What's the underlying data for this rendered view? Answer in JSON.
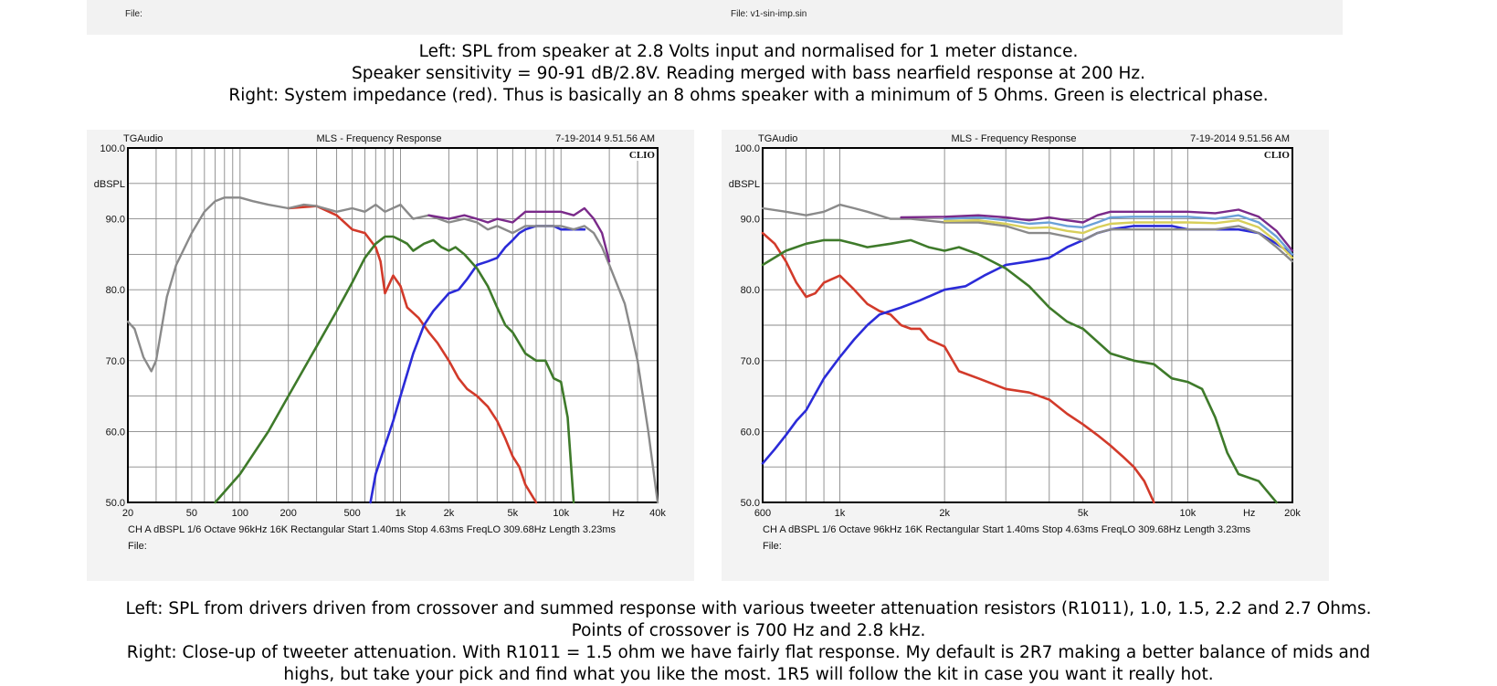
{
  "top_strip": {
    "left_file": "File:",
    "right_file": "File: v1-sin-imp.sin"
  },
  "caption_top": {
    "line1": "Left: SPL from speaker at 2.8 Volts input and normalised for 1 meter distance.",
    "line2": "Speaker sensitivity = 90-91 dB/2.8V. Reading merged with bass nearfield response at 200 Hz.",
    "line3": "Right: System impedance (red). Thus is basically an 8 ohms speaker with a minimum of 5 Ohms. Green is electrical phase."
  },
  "caption_bottom": {
    "line1": "Left: SPL from drivers driven from crossover and summed response with various tweeter attenuation resistors (R1011), 1.0, 1.5, 2.2 and 2.7 Ohms.",
    "line2": "Points of crossover is 700 Hz and 2.8 kHz.",
    "line3": "Right: Close-up of tweeter attenuation. With R1011 = 1.5 ohm we have fairly flat response. My default is 2R7 making a better balance of mids and",
    "line4": "highs, but take your pick and find what you like the most. 1R5 will follow the kit in case you want it really hot."
  },
  "colors": {
    "woofer": "#d23a2a",
    "tweeter": "#2b2bd8",
    "mid": "#3e7a2a",
    "sum_grey": "#8a8a8a",
    "sum_yellow": "#d8cf5a",
    "sum_lightblue": "#6aa0d8",
    "sum_purple": "#7a2a8a"
  },
  "chart_data": [
    {
      "type": "line",
      "header_left": "TGAudio",
      "title": "MLS - Frequency Response",
      "timestamp": "7-19-2014 9.51.56 AM",
      "brand": "CLIO",
      "ylabel": "dBSPL",
      "xlabel": "Hz",
      "x_scale": "log",
      "xlim": [
        20,
        40000
      ],
      "ylim": [
        50,
        100
      ],
      "y_ticks": [
        "100.0",
        "90.0",
        "80.0",
        "70.0",
        "60.0",
        "50.0"
      ],
      "x_ticks": [
        "20",
        "50",
        "100",
        "200",
        "500",
        "1k",
        "2k",
        "5k",
        "10k",
        "Hz",
        "40k"
      ],
      "footer": "CH A  dBSPL  1/6 Octave  96kHz  16K  Rectangular  Start 1.40ms  Stop 4.63ms  FreqLO 309.68Hz  Length 3.23ms",
      "file_label": "File:",
      "series": [
        {
          "color_key": "woofer",
          "x": [
            200,
            300,
            400,
            500,
            600,
            700,
            750,
            800,
            900,
            1000,
            1100,
            1300,
            1500,
            1700,
            2000,
            2300,
            2600,
            3000,
            3500,
            4000,
            4500,
            5000,
            5500,
            6000,
            7000
          ],
          "y": [
            91.5,
            91.8,
            90.5,
            88.5,
            88,
            86,
            84,
            79.5,
            82,
            80.5,
            77.5,
            76,
            74,
            72.5,
            70,
            67.5,
            66,
            65,
            63.5,
            61.5,
            59,
            56.5,
            55,
            52.5,
            50
          ]
        },
        {
          "color_key": "tweeter",
          "x": [
            650,
            700,
            800,
            900,
            1000,
            1200,
            1400,
            1600,
            2000,
            2300,
            2600,
            3000,
            3500,
            4000,
            4500,
            5000,
            5500,
            6000,
            7000,
            8000,
            9000,
            10000,
            12000,
            14000
          ],
          "y": [
            50,
            54,
            58,
            61.5,
            65,
            71,
            75,
            77,
            79.5,
            80,
            81.5,
            83.5,
            84,
            84.5,
            86,
            87,
            88,
            88.5,
            89,
            89,
            89,
            88.5,
            88.5,
            88.5
          ]
        },
        {
          "color_key": "mid",
          "x": [
            70,
            100,
            150,
            200,
            300,
            400,
            500,
            600,
            700,
            800,
            900,
            1000,
            1100,
            1200,
            1400,
            1600,
            1800,
            2000,
            2200,
            2500,
            3000,
            3500,
            4000,
            4500,
            5000,
            6000,
            7000,
            8000,
            9000,
            10000,
            11000,
            12000
          ],
          "y": [
            50,
            54,
            60,
            65,
            72,
            77,
            81,
            84.5,
            86.5,
            87.5,
            87.5,
            87,
            86.5,
            85.5,
            86.5,
            87,
            86,
            85.5,
            86,
            85,
            83,
            80.5,
            77.5,
            75,
            74,
            71,
            70,
            70,
            67.5,
            67,
            62,
            50
          ]
        },
        {
          "color_key": "sum_grey",
          "x": [
            20,
            22,
            25,
            28,
            30,
            35,
            40,
            50,
            60,
            70,
            80,
            100,
            120,
            150,
            200,
            250,
            300,
            400,
            500,
            600,
            700,
            800,
            1000,
            1200,
            1500,
            2000,
            2500,
            3000,
            3500,
            4000,
            5000,
            6000,
            7000,
            8000,
            10000,
            12000,
            14000,
            16000,
            18000,
            20000,
            25000,
            30000,
            35000,
            40000
          ],
          "y": [
            75.5,
            74.5,
            70.5,
            68.5,
            70,
            79,
            83.5,
            88,
            91,
            92.5,
            93,
            93,
            92.5,
            92,
            91.5,
            92,
            91.8,
            91,
            91.5,
            91,
            92,
            91,
            92,
            90,
            90.5,
            89.5,
            90,
            89.5,
            88.5,
            89,
            88,
            89,
            89,
            89,
            89,
            88.5,
            89,
            88,
            86,
            83.5,
            78,
            70,
            60,
            50
          ]
        },
        {
          "color_key": "sum_purple",
          "x": [
            1500,
            2000,
            2500,
            3000,
            3500,
            4000,
            5000,
            6000,
            7000,
            8000,
            10000,
            12000,
            14000,
            16000,
            18000,
            20000
          ],
          "y": [
            90.5,
            90,
            90.5,
            90,
            89.5,
            90,
            89.5,
            91,
            91,
            91,
            91,
            90.5,
            91.5,
            90,
            88,
            84
          ]
        }
      ]
    },
    {
      "type": "line",
      "header_left": "TGAudio",
      "title": "MLS - Frequency Response",
      "timestamp": "7-19-2014 9.51.56 AM",
      "brand": "CLIO",
      "ylabel": "dBSPL",
      "xlabel": "Hz",
      "x_scale": "log",
      "xlim": [
        600,
        20000
      ],
      "ylim": [
        50,
        100
      ],
      "y_ticks": [
        "100.0",
        "90.0",
        "80.0",
        "70.0",
        "60.0",
        "50.0"
      ],
      "x_ticks": [
        "600",
        "1k",
        "2k",
        "5k",
        "10k",
        "Hz",
        "20k"
      ],
      "footer": "CH A  dBSPL  1/6 Octave  96kHz  16K  Rectangular  Start 1.40ms  Stop 4.63ms  FreqLO 309.68Hz  Length 3.23ms",
      "file_label": "File:",
      "series": [
        {
          "color_key": "woofer",
          "x": [
            600,
            650,
            700,
            750,
            800,
            850,
            900,
            1000,
            1100,
            1200,
            1300,
            1400,
            1500,
            1600,
            1700,
            1800,
            2000,
            2200,
            2500,
            3000,
            3500,
            4000,
            4500,
            5000,
            5500,
            6000,
            6500,
            7000,
            7500,
            8000
          ],
          "y": [
            88,
            86.5,
            84,
            81,
            79,
            79.5,
            81,
            82,
            80,
            78,
            77,
            76.5,
            75,
            74.5,
            74.5,
            73,
            72,
            68.5,
            67.5,
            66,
            65.5,
            64.5,
            62.5,
            61,
            59.5,
            58,
            56.5,
            55,
            53,
            50
          ]
        },
        {
          "color_key": "tweeter",
          "x": [
            600,
            650,
            700,
            750,
            800,
            900,
            1000,
            1100,
            1200,
            1300,
            1500,
            1700,
            2000,
            2300,
            2600,
            3000,
            3500,
            4000,
            4500,
            5000,
            5500,
            6000,
            7000,
            8000,
            9000,
            10000,
            12000,
            14000,
            16000,
            18000,
            20000
          ],
          "y": [
            55.5,
            57.5,
            59.5,
            61.5,
            63,
            67.5,
            70.5,
            73,
            75,
            76.5,
            77.5,
            78.5,
            80,
            80.5,
            82,
            83.5,
            84,
            84.5,
            86,
            87,
            88,
            88.5,
            89,
            89,
            89,
            88.5,
            88.5,
            88.5,
            88,
            86.5,
            85
          ]
        },
        {
          "color_key": "mid",
          "x": [
            600,
            700,
            800,
            900,
            1000,
            1100,
            1200,
            1400,
            1600,
            1800,
            2000,
            2200,
            2500,
            3000,
            3500,
            4000,
            4500,
            5000,
            6000,
            7000,
            8000,
            9000,
            10000,
            11000,
            12000,
            13000,
            14000,
            16000,
            18000
          ],
          "y": [
            83.5,
            85.5,
            86.5,
            87,
            87,
            86.5,
            86,
            86.5,
            87,
            86,
            85.5,
            86,
            85,
            83,
            80.5,
            77.5,
            75.5,
            74.5,
            71,
            70,
            69.5,
            67.5,
            67,
            66,
            62,
            57,
            54,
            53,
            50
          ]
        },
        {
          "color_key": "sum_grey",
          "x": [
            600,
            700,
            800,
            900,
            1000,
            1100,
            1200,
            1400,
            1600,
            2000,
            2500,
            3000,
            3500,
            4000,
            4500,
            5000,
            5500,
            6000,
            7000,
            8000,
            9000,
            10000,
            12000,
            14000,
            16000,
            18000,
            20000
          ],
          "y": [
            91.5,
            91,
            90.5,
            91,
            92,
            91.5,
            91,
            90,
            90,
            89.5,
            89.5,
            89,
            88,
            88,
            87.5,
            87,
            88,
            88.5,
            88.5,
            88.5,
            88.5,
            88.5,
            88.5,
            89,
            88,
            86,
            84
          ]
        },
        {
          "color_key": "sum_yellow",
          "x": [
            2000,
            2500,
            3000,
            3500,
            4000,
            4500,
            5000,
            5500,
            6000,
            7000,
            8000,
            10000,
            12000,
            14000,
            16000,
            18000,
            20000
          ],
          "y": [
            89.7,
            89.8,
            89.3,
            88.7,
            88.8,
            88.3,
            88,
            88.8,
            89.3,
            89.5,
            89.5,
            89.5,
            89.4,
            89.8,
            88.8,
            86.8,
            84.5
          ]
        },
        {
          "color_key": "sum_lightblue",
          "x": [
            2000,
            2500,
            3000,
            3500,
            4000,
            4500,
            5000,
            5500,
            6000,
            7000,
            8000,
            10000,
            12000,
            14000,
            16000,
            18000,
            20000
          ],
          "y": [
            90,
            90.2,
            89.8,
            89.3,
            89.5,
            89,
            88.8,
            89.5,
            90.2,
            90.3,
            90.3,
            90.3,
            90,
            90.5,
            89.5,
            87.5,
            85
          ]
        },
        {
          "color_key": "sum_purple",
          "x": [
            1500,
            2000,
            2500,
            3000,
            3500,
            4000,
            4500,
            5000,
            5500,
            6000,
            7000,
            8000,
            10000,
            12000,
            14000,
            16000,
            18000,
            20000
          ],
          "y": [
            90.2,
            90.3,
            90.5,
            90.2,
            89.8,
            90.2,
            89.8,
            89.5,
            90.5,
            91,
            91,
            91,
            91,
            90.8,
            91.3,
            90.3,
            88.3,
            85.5
          ]
        }
      ]
    }
  ]
}
